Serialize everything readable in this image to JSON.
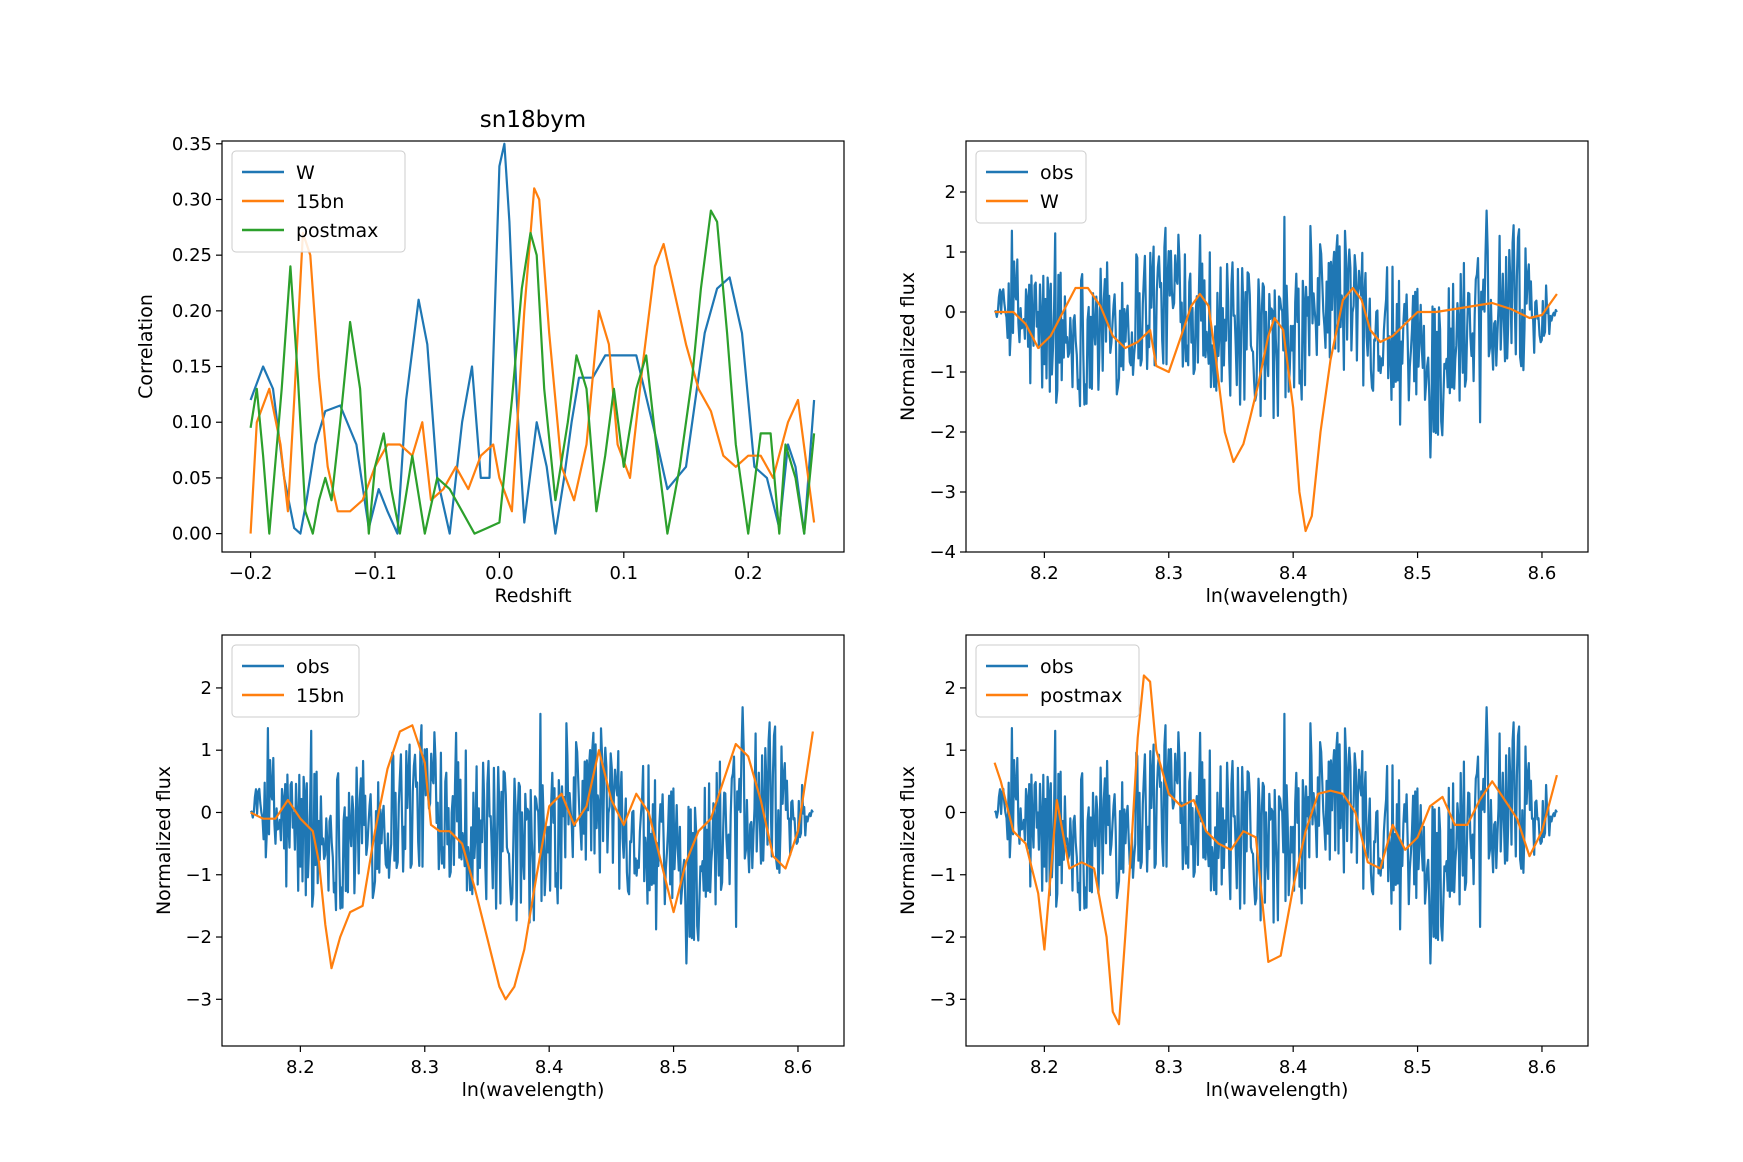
{
  "figure_title": "sn18bym",
  "colors": {
    "blue": "#1f77b4",
    "orange": "#ff7f0e",
    "green": "#2ca02c"
  },
  "chart_data": [
    {
      "id": "p1",
      "type": "line",
      "title": "sn18bym",
      "xlabel": "Redshift",
      "ylabel": "Correlation",
      "xlim": [
        -0.223,
        0.277
      ],
      "ylim": [
        -0.0165,
        0.3525
      ],
      "xticks": [
        -0.2,
        -0.1,
        0.0,
        0.1,
        0.2
      ],
      "xtick_labels": [
        "−0.2",
        "−0.1",
        "0.0",
        "0.1",
        "0.2"
      ],
      "yticks": [
        0.0,
        0.05,
        0.1,
        0.15,
        0.2,
        0.25,
        0.3,
        0.35
      ],
      "ytick_labels": [
        "0.00",
        "0.05",
        "0.10",
        "0.15",
        "0.20",
        "0.25",
        "0.30",
        "0.35"
      ],
      "legend": [
        "W",
        "15bn",
        "postmax"
      ],
      "legend_loc": "upper left",
      "series": [
        {
          "name": "W",
          "color": "#1f77b4",
          "x": [
            -0.2,
            -0.19,
            -0.182,
            -0.173,
            -0.165,
            -0.16,
            -0.155,
            -0.148,
            -0.14,
            -0.128,
            -0.115,
            -0.105,
            -0.097,
            -0.09,
            -0.082,
            -0.075,
            -0.065,
            -0.058,
            -0.05,
            -0.04,
            -0.03,
            -0.022,
            -0.015,
            -0.008,
            0.0,
            0.004,
            0.008,
            0.014,
            0.02,
            0.03,
            0.038,
            0.045,
            0.052,
            0.058,
            0.064,
            0.075,
            0.085,
            0.095,
            0.11,
            0.125,
            0.135,
            0.15,
            0.165,
            0.175,
            0.185,
            0.195,
            0.205,
            0.215,
            0.225,
            0.232,
            0.238,
            0.245,
            0.253
          ],
          "y": [
            0.12,
            0.15,
            0.13,
            0.05,
            0.005,
            0.0,
            0.03,
            0.08,
            0.11,
            0.115,
            0.08,
            0.005,
            0.04,
            0.02,
            0.0,
            0.12,
            0.21,
            0.17,
            0.05,
            0.0,
            0.1,
            0.15,
            0.05,
            0.05,
            0.33,
            0.35,
            0.28,
            0.12,
            0.01,
            0.1,
            0.06,
            0.0,
            0.05,
            0.1,
            0.14,
            0.14,
            0.16,
            0.16,
            0.16,
            0.09,
            0.04,
            0.06,
            0.18,
            0.22,
            0.23,
            0.18,
            0.06,
            0.05,
            0.005,
            0.08,
            0.06,
            0.0,
            0.12
          ]
        },
        {
          "name": "15bn",
          "color": "#ff7f0e",
          "x": [
            -0.2,
            -0.195,
            -0.185,
            -0.176,
            -0.17,
            -0.165,
            -0.158,
            -0.152,
            -0.145,
            -0.138,
            -0.13,
            -0.12,
            -0.11,
            -0.1,
            -0.09,
            -0.08,
            -0.07,
            -0.062,
            -0.055,
            -0.045,
            -0.035,
            -0.025,
            -0.015,
            -0.005,
            0.0,
            0.01,
            0.02,
            0.028,
            0.032,
            0.04,
            0.05,
            0.06,
            0.07,
            0.08,
            0.088,
            0.095,
            0.105,
            0.115,
            0.125,
            0.132,
            0.14,
            0.15,
            0.16,
            0.17,
            0.18,
            0.19,
            0.2,
            0.21,
            0.22,
            0.232,
            0.24,
            0.253
          ],
          "y": [
            0.0,
            0.1,
            0.13,
            0.08,
            0.02,
            0.12,
            0.27,
            0.25,
            0.14,
            0.06,
            0.02,
            0.02,
            0.03,
            0.06,
            0.08,
            0.08,
            0.07,
            0.1,
            0.03,
            0.04,
            0.06,
            0.04,
            0.07,
            0.08,
            0.05,
            0.02,
            0.2,
            0.31,
            0.3,
            0.18,
            0.06,
            0.03,
            0.08,
            0.2,
            0.17,
            0.08,
            0.05,
            0.15,
            0.24,
            0.26,
            0.22,
            0.17,
            0.13,
            0.11,
            0.07,
            0.06,
            0.07,
            0.07,
            0.05,
            0.1,
            0.12,
            0.01
          ]
        },
        {
          "name": "postmax",
          "color": "#2ca02c",
          "x": [
            -0.2,
            -0.195,
            -0.19,
            -0.185,
            -0.175,
            -0.168,
            -0.162,
            -0.156,
            -0.15,
            -0.145,
            -0.14,
            -0.135,
            -0.128,
            -0.12,
            -0.112,
            -0.105,
            -0.1,
            -0.093,
            -0.087,
            -0.08,
            -0.07,
            -0.06,
            -0.05,
            -0.04,
            -0.03,
            -0.02,
            -0.01,
            0.0,
            0.01,
            0.018,
            0.025,
            0.03,
            0.036,
            0.045,
            0.055,
            0.062,
            0.07,
            0.078,
            0.085,
            0.092,
            0.1,
            0.11,
            0.118,
            0.126,
            0.135,
            0.145,
            0.155,
            0.162,
            0.17,
            0.175,
            0.183,
            0.19,
            0.2,
            0.21,
            0.218,
            0.225,
            0.23,
            0.238,
            0.245,
            0.253
          ],
          "y": [
            0.095,
            0.13,
            0.07,
            0.0,
            0.13,
            0.24,
            0.14,
            0.02,
            0.0,
            0.03,
            0.05,
            0.03,
            0.1,
            0.19,
            0.13,
            0.0,
            0.06,
            0.09,
            0.04,
            0.0,
            0.07,
            0.0,
            0.05,
            0.04,
            0.02,
            0.0,
            0.005,
            0.01,
            0.12,
            0.22,
            0.27,
            0.25,
            0.13,
            0.03,
            0.1,
            0.16,
            0.13,
            0.02,
            0.07,
            0.13,
            0.06,
            0.13,
            0.16,
            0.08,
            0.0,
            0.06,
            0.14,
            0.22,
            0.29,
            0.28,
            0.18,
            0.08,
            0.0,
            0.09,
            0.09,
            0.0,
            0.08,
            0.05,
            0.0,
            0.09
          ]
        }
      ]
    },
    {
      "id": "p2",
      "type": "line",
      "xlabel": "ln(wavelength)",
      "ylabel": "Normalized flux",
      "xlim": [
        8.137,
        8.637
      ],
      "ylim": [
        -4.0,
        2.85
      ],
      "xticks": [
        8.2,
        8.3,
        8.4,
        8.5,
        8.6
      ],
      "xtick_labels": [
        "8.2",
        "8.3",
        "8.4",
        "8.5",
        "8.6"
      ],
      "yticks": [
        -4,
        -3,
        -2,
        -1,
        0,
        1,
        2
      ],
      "ytick_labels": [
        "−4",
        "−3",
        "−2",
        "−1",
        "0",
        "1",
        "2"
      ],
      "legend": [
        "obs",
        "W"
      ],
      "legend_loc": "upper left",
      "obs_noise_amplitude": 1.0,
      "obs_envelope": {
        "x": [
          8.16,
          8.175,
          8.19,
          8.22,
          8.25,
          8.28,
          8.31,
          8.34,
          8.37,
          8.4,
          8.43,
          8.46,
          8.49,
          8.52,
          8.55,
          8.58,
          8.6,
          8.612
        ],
        "y": [
          0.0,
          0.0,
          -0.3,
          -0.4,
          -0.3,
          0.1,
          0.3,
          -0.2,
          -0.6,
          -0.6,
          0.3,
          0.0,
          -0.8,
          -0.9,
          0.2,
          0.3,
          -0.1,
          0.0
        ]
      },
      "series": [
        {
          "name": "W",
          "color": "#ff7f0e",
          "x": [
            8.16,
            8.175,
            8.185,
            8.195,
            8.205,
            8.215,
            8.225,
            8.235,
            8.245,
            8.255,
            8.265,
            8.275,
            8.285,
            8.29,
            8.3,
            8.31,
            8.318,
            8.325,
            8.332,
            8.338,
            8.345,
            8.352,
            8.36,
            8.365,
            8.372,
            8.38,
            8.385,
            8.392,
            8.4,
            8.405,
            8.41,
            8.415,
            8.422,
            8.43,
            8.44,
            8.448,
            8.455,
            8.462,
            8.47,
            8.48,
            8.49,
            8.5,
            8.515,
            8.53,
            8.545,
            8.56,
            8.575,
            8.59,
            8.6,
            8.612
          ],
          "y": [
            0.0,
            0.0,
            -0.2,
            -0.6,
            -0.4,
            0.0,
            0.4,
            0.4,
            0.1,
            -0.4,
            -0.6,
            -0.5,
            -0.3,
            -0.9,
            -1.0,
            -0.4,
            0.1,
            0.3,
            0.1,
            -0.8,
            -2.0,
            -2.5,
            -2.2,
            -1.8,
            -1.2,
            -0.4,
            -0.1,
            -0.3,
            -1.6,
            -3.0,
            -3.65,
            -3.4,
            -2.0,
            -0.8,
            0.2,
            0.4,
            0.2,
            -0.3,
            -0.5,
            -0.4,
            -0.2,
            0.0,
            0.0,
            0.05,
            0.1,
            0.15,
            0.05,
            -0.1,
            -0.05,
            0.3
          ]
        }
      ]
    },
    {
      "id": "p3",
      "type": "line",
      "xlabel": "ln(wavelength)",
      "ylabel": "Normalized flux",
      "xlim": [
        8.137,
        8.637
      ],
      "ylim": [
        -3.75,
        2.85
      ],
      "xticks": [
        8.2,
        8.3,
        8.4,
        8.5,
        8.6
      ],
      "xtick_labels": [
        "8.2",
        "8.3",
        "8.4",
        "8.5",
        "8.6"
      ],
      "yticks": [
        -3,
        -2,
        -1,
        0,
        1,
        2
      ],
      "ytick_labels": [
        "−3",
        "−2",
        "−1",
        "0",
        "1",
        "2"
      ],
      "legend": [
        "obs",
        "15bn"
      ],
      "legend_loc": "upper left",
      "obs_noise_amplitude": 1.0,
      "obs_envelope": {
        "x": [
          8.16,
          8.175,
          8.19,
          8.22,
          8.25,
          8.28,
          8.31,
          8.34,
          8.37,
          8.4,
          8.43,
          8.46,
          8.49,
          8.52,
          8.55,
          8.58,
          8.6,
          8.612
        ],
        "y": [
          0.0,
          0.0,
          -0.3,
          -0.4,
          -0.3,
          0.1,
          0.3,
          -0.2,
          -0.6,
          -0.6,
          0.3,
          0.0,
          -0.8,
          -0.9,
          0.2,
          0.3,
          -0.1,
          0.0
        ]
      },
      "series": [
        {
          "name": "15bn",
          "color": "#ff7f0e",
          "x": [
            8.16,
            8.17,
            8.18,
            8.19,
            8.2,
            8.21,
            8.215,
            8.22,
            8.225,
            8.232,
            8.24,
            8.25,
            8.26,
            8.27,
            8.28,
            8.29,
            8.3,
            8.305,
            8.312,
            8.32,
            8.33,
            8.34,
            8.35,
            8.36,
            8.365,
            8.372,
            8.38,
            8.39,
            8.4,
            8.41,
            8.42,
            8.43,
            8.44,
            8.45,
            8.46,
            8.47,
            8.48,
            8.49,
            8.5,
            8.51,
            8.52,
            8.53,
            8.54,
            8.55,
            8.56,
            8.57,
            8.58,
            8.59,
            8.6,
            8.612
          ],
          "y": [
            0.0,
            -0.1,
            -0.1,
            0.2,
            -0.1,
            -0.3,
            -0.8,
            -1.8,
            -2.5,
            -2.0,
            -1.6,
            -1.5,
            -0.3,
            0.7,
            1.3,
            1.4,
            0.8,
            -0.2,
            -0.3,
            -0.3,
            -0.5,
            -1.2,
            -2.0,
            -2.8,
            -3.0,
            -2.8,
            -2.2,
            -1.0,
            0.1,
            0.3,
            -0.2,
            0.1,
            1.0,
            0.2,
            -0.2,
            0.3,
            0.0,
            -0.8,
            -1.6,
            -0.8,
            -0.3,
            -0.1,
            0.5,
            1.1,
            0.9,
            0.2,
            -0.7,
            -0.9,
            -0.3,
            1.3
          ]
        }
      ]
    },
    {
      "id": "p4",
      "type": "line",
      "xlabel": "ln(wavelength)",
      "ylabel": "Normalized flux",
      "xlim": [
        8.137,
        8.637
      ],
      "ylim": [
        -3.75,
        2.85
      ],
      "xticks": [
        8.2,
        8.3,
        8.4,
        8.5,
        8.6
      ],
      "xtick_labels": [
        "8.2",
        "8.3",
        "8.4",
        "8.5",
        "8.6"
      ],
      "yticks": [
        -3,
        -2,
        -1,
        0,
        1,
        2
      ],
      "ytick_labels": [
        "−3",
        "−2",
        "−1",
        "0",
        "1",
        "2"
      ],
      "legend": [
        "obs",
        "postmax"
      ],
      "legend_loc": "upper left",
      "obs_noise_amplitude": 1.0,
      "obs_envelope": {
        "x": [
          8.16,
          8.175,
          8.19,
          8.22,
          8.25,
          8.28,
          8.31,
          8.34,
          8.37,
          8.4,
          8.43,
          8.46,
          8.49,
          8.52,
          8.55,
          8.58,
          8.6,
          8.612
        ],
        "y": [
          0.0,
          0.0,
          -0.3,
          -0.4,
          -0.3,
          0.1,
          0.3,
          -0.2,
          -0.6,
          -0.6,
          0.3,
          0.0,
          -0.8,
          -0.9,
          0.2,
          0.3,
          -0.1,
          0.0
        ]
      },
      "series": [
        {
          "name": "postmax",
          "color": "#ff7f0e",
          "x": [
            8.16,
            8.165,
            8.175,
            8.185,
            8.19,
            8.195,
            8.2,
            8.205,
            8.21,
            8.22,
            8.23,
            8.24,
            8.25,
            8.255,
            8.26,
            8.265,
            8.27,
            8.275,
            8.28,
            8.285,
            8.29,
            8.3,
            8.31,
            8.32,
            8.33,
            8.34,
            8.35,
            8.36,
            8.37,
            8.38,
            8.39,
            8.4,
            8.41,
            8.42,
            8.43,
            8.44,
            8.45,
            8.46,
            8.47,
            8.48,
            8.49,
            8.5,
            8.51,
            8.52,
            8.53,
            8.54,
            8.55,
            8.56,
            8.57,
            8.58,
            8.59,
            8.6,
            8.612
          ],
          "y": [
            0.8,
            0.5,
            -0.3,
            -0.5,
            -0.9,
            -1.3,
            -2.2,
            -1.0,
            0.2,
            -0.9,
            -0.8,
            -0.9,
            -2.0,
            -3.2,
            -3.4,
            -2.0,
            -0.5,
            1.2,
            2.2,
            2.1,
            1.0,
            0.3,
            0.1,
            0.2,
            -0.3,
            -0.5,
            -0.6,
            -0.3,
            -0.4,
            -2.4,
            -2.3,
            -1.2,
            -0.3,
            0.3,
            0.35,
            0.3,
            0.0,
            -0.8,
            -0.9,
            -0.2,
            -0.6,
            -0.4,
            0.1,
            0.25,
            -0.2,
            -0.2,
            0.2,
            0.5,
            0.2,
            -0.1,
            -0.7,
            -0.3,
            0.6
          ]
        }
      ]
    }
  ]
}
